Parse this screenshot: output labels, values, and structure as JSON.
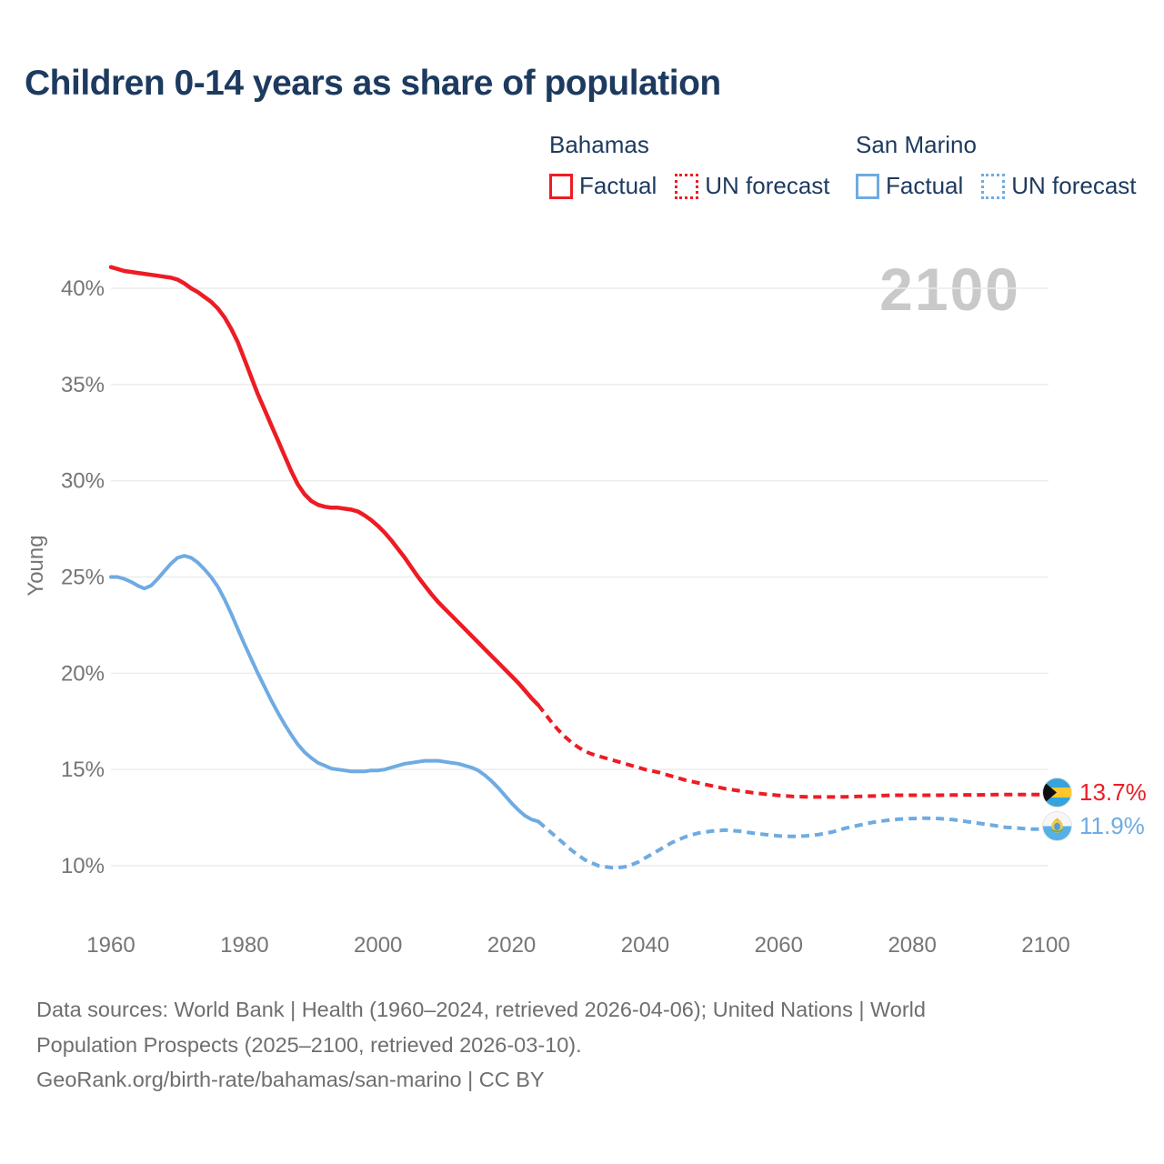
{
  "title": "Children 0-14 years as share of population",
  "watermark": "2100",
  "legend": {
    "groups": [
      {
        "name": "Bahamas",
        "color": "#ed1c24",
        "factual_label": "Factual",
        "forecast_label": "UN forecast"
      },
      {
        "name": "San Marino",
        "color": "#6fabe2",
        "factual_label": "Factual",
        "forecast_label": "UN forecast"
      }
    ]
  },
  "footer": {
    "line1": "Data sources: World Bank | Health (1960–2024, retrieved 2026-04-06); United Nations | World",
    "line2": "Population Prospects (2025–2100, retrieved 2026-03-10).",
    "line3": "GeoRank.org/birth-rate/bahamas/san-marino | CC BY"
  },
  "colors": {
    "bahamas_red": "#ed1c24",
    "san_marino_blue": "#6fabe2",
    "navy_text": "#1d3a5f",
    "tick_gray": "#757575",
    "footer_gray": "#6e6e6e",
    "gridline": "#ececec",
    "watermark_gray": "#c9c9c9"
  },
  "chart_data": {
    "type": "line",
    "title": "Children 0-14 years as share of population",
    "xlabel": "",
    "ylabel": "Young",
    "xlim": [
      1960,
      2100
    ],
    "ylim": [
      8.5,
      43
    ],
    "grid": true,
    "legend_position": "top-right",
    "x_ticks": [
      {
        "v": 1960,
        "label": "1960"
      },
      {
        "v": 1980,
        "label": "1980"
      },
      {
        "v": 2000,
        "label": "2000"
      },
      {
        "v": 2020,
        "label": "2020"
      },
      {
        "v": 2040,
        "label": "2040"
      },
      {
        "v": 2060,
        "label": "2060"
      },
      {
        "v": 2080,
        "label": "2080"
      },
      {
        "v": 2100,
        "label": "2100"
      }
    ],
    "y_ticks": [
      {
        "v": 10,
        "label": "10%"
      },
      {
        "v": 15,
        "label": "15%"
      },
      {
        "v": 20,
        "label": "20%"
      },
      {
        "v": 25,
        "label": "25%"
      },
      {
        "v": 30,
        "label": "30%"
      },
      {
        "v": 35,
        "label": "35%"
      },
      {
        "v": 40,
        "label": "40%"
      }
    ],
    "series": [
      {
        "name": "Bahamas Factual",
        "color": "#ed1c24",
        "style": "solid",
        "width": 4.5,
        "points": [
          [
            1960,
            41.1
          ],
          [
            1961,
            41.0
          ],
          [
            1962,
            40.9
          ],
          [
            1963,
            40.85
          ],
          [
            1964,
            40.8
          ],
          [
            1965,
            40.75
          ],
          [
            1966,
            40.7
          ],
          [
            1967,
            40.65
          ],
          [
            1968,
            40.6
          ],
          [
            1969,
            40.55
          ],
          [
            1970,
            40.45
          ],
          [
            1971,
            40.25
          ],
          [
            1972,
            40.0
          ],
          [
            1973,
            39.8
          ],
          [
            1974,
            39.55
          ],
          [
            1975,
            39.3
          ],
          [
            1976,
            38.95
          ],
          [
            1977,
            38.5
          ],
          [
            1978,
            37.9
          ],
          [
            1979,
            37.2
          ],
          [
            1980,
            36.3
          ],
          [
            1981,
            35.4
          ],
          [
            1982,
            34.5
          ],
          [
            1983,
            33.7
          ],
          [
            1984,
            32.9
          ],
          [
            1985,
            32.1
          ],
          [
            1986,
            31.3
          ],
          [
            1987,
            30.5
          ],
          [
            1988,
            29.8
          ],
          [
            1989,
            29.3
          ],
          [
            1990,
            28.95
          ],
          [
            1991,
            28.75
          ],
          [
            1992,
            28.65
          ],
          [
            1993,
            28.6
          ],
          [
            1994,
            28.6
          ],
          [
            1995,
            28.55
          ],
          [
            1996,
            28.5
          ],
          [
            1997,
            28.4
          ],
          [
            1998,
            28.2
          ],
          [
            1999,
            27.95
          ],
          [
            2000,
            27.65
          ],
          [
            2001,
            27.3
          ],
          [
            2002,
            26.9
          ],
          [
            2003,
            26.45
          ],
          [
            2004,
            26.0
          ],
          [
            2005,
            25.5
          ],
          [
            2006,
            25.0
          ],
          [
            2007,
            24.55
          ],
          [
            2008,
            24.1
          ],
          [
            2009,
            23.7
          ],
          [
            2010,
            23.35
          ],
          [
            2011,
            23.0
          ],
          [
            2012,
            22.65
          ],
          [
            2013,
            22.3
          ],
          [
            2014,
            21.95
          ],
          [
            2015,
            21.6
          ],
          [
            2016,
            21.25
          ],
          [
            2017,
            20.9
          ],
          [
            2018,
            20.55
          ],
          [
            2019,
            20.2
          ],
          [
            2020,
            19.85
          ],
          [
            2021,
            19.5
          ],
          [
            2022,
            19.1
          ],
          [
            2023,
            18.7
          ],
          [
            2024,
            18.35
          ]
        ]
      },
      {
        "name": "Bahamas UN forecast",
        "color": "#ed1c24",
        "style": "dashed",
        "width": 4,
        "points": [
          [
            2024,
            18.35
          ],
          [
            2025,
            17.9
          ],
          [
            2026,
            17.45
          ],
          [
            2027,
            17.05
          ],
          [
            2028,
            16.7
          ],
          [
            2029,
            16.4
          ],
          [
            2030,
            16.15
          ],
          [
            2031,
            15.95
          ],
          [
            2032,
            15.8
          ],
          [
            2033,
            15.7
          ],
          [
            2034,
            15.6
          ],
          [
            2035,
            15.5
          ],
          [
            2036,
            15.4
          ],
          [
            2037,
            15.3
          ],
          [
            2038,
            15.2
          ],
          [
            2039,
            15.1
          ],
          [
            2040,
            15.0
          ],
          [
            2042,
            14.85
          ],
          [
            2044,
            14.65
          ],
          [
            2046,
            14.45
          ],
          [
            2048,
            14.3
          ],
          [
            2050,
            14.15
          ],
          [
            2052,
            14.0
          ],
          [
            2054,
            13.9
          ],
          [
            2056,
            13.8
          ],
          [
            2058,
            13.72
          ],
          [
            2060,
            13.65
          ],
          [
            2062,
            13.6
          ],
          [
            2064,
            13.58
          ],
          [
            2066,
            13.57
          ],
          [
            2068,
            13.57
          ],
          [
            2070,
            13.58
          ],
          [
            2072,
            13.6
          ],
          [
            2074,
            13.62
          ],
          [
            2076,
            13.65
          ],
          [
            2078,
            13.66
          ],
          [
            2080,
            13.66
          ],
          [
            2082,
            13.66
          ],
          [
            2084,
            13.66
          ],
          [
            2086,
            13.67
          ],
          [
            2088,
            13.68
          ],
          [
            2090,
            13.68
          ],
          [
            2092,
            13.69
          ],
          [
            2094,
            13.7
          ],
          [
            2096,
            13.7
          ],
          [
            2098,
            13.7
          ],
          [
            2100,
            13.7
          ]
        ]
      },
      {
        "name": "San Marino Factual",
        "color": "#6fabe2",
        "style": "solid",
        "width": 4,
        "points": [
          [
            1960,
            25.0
          ],
          [
            1961,
            25.0
          ],
          [
            1962,
            24.9
          ],
          [
            1963,
            24.75
          ],
          [
            1964,
            24.55
          ],
          [
            1965,
            24.4
          ],
          [
            1966,
            24.55
          ],
          [
            1967,
            24.9
          ],
          [
            1968,
            25.3
          ],
          [
            1969,
            25.7
          ],
          [
            1970,
            26.0
          ],
          [
            1971,
            26.1
          ],
          [
            1972,
            26.0
          ],
          [
            1973,
            25.75
          ],
          [
            1974,
            25.4
          ],
          [
            1975,
            25.0
          ],
          [
            1976,
            24.5
          ],
          [
            1977,
            23.85
          ],
          [
            1978,
            23.1
          ],
          [
            1979,
            22.3
          ],
          [
            1980,
            21.5
          ],
          [
            1981,
            20.75
          ],
          [
            1982,
            20.0
          ],
          [
            1983,
            19.3
          ],
          [
            1984,
            18.6
          ],
          [
            1985,
            17.95
          ],
          [
            1986,
            17.35
          ],
          [
            1987,
            16.8
          ],
          [
            1988,
            16.3
          ],
          [
            1989,
            15.9
          ],
          [
            1990,
            15.6
          ],
          [
            1991,
            15.35
          ],
          [
            1992,
            15.2
          ],
          [
            1993,
            15.05
          ],
          [
            1994,
            15.0
          ],
          [
            1995,
            14.95
          ],
          [
            1996,
            14.9
          ],
          [
            1997,
            14.9
          ],
          [
            1998,
            14.9
          ],
          [
            1999,
            14.95
          ],
          [
            2000,
            14.95
          ],
          [
            2001,
            15.0
          ],
          [
            2002,
            15.1
          ],
          [
            2003,
            15.2
          ],
          [
            2004,
            15.3
          ],
          [
            2005,
            15.35
          ],
          [
            2006,
            15.4
          ],
          [
            2007,
            15.45
          ],
          [
            2008,
            15.45
          ],
          [
            2009,
            15.45
          ],
          [
            2010,
            15.4
          ],
          [
            2011,
            15.35
          ],
          [
            2012,
            15.3
          ],
          [
            2013,
            15.2
          ],
          [
            2014,
            15.1
          ],
          [
            2015,
            14.95
          ],
          [
            2016,
            14.7
          ],
          [
            2017,
            14.4
          ],
          [
            2018,
            14.05
          ],
          [
            2019,
            13.65
          ],
          [
            2020,
            13.25
          ],
          [
            2021,
            12.9
          ],
          [
            2022,
            12.6
          ],
          [
            2023,
            12.4
          ],
          [
            2024,
            12.3
          ]
        ]
      },
      {
        "name": "San Marino UN forecast",
        "color": "#6fabe2",
        "style": "dashed",
        "width": 4,
        "points": [
          [
            2024,
            12.3
          ],
          [
            2025,
            12.0
          ],
          [
            2026,
            11.7
          ],
          [
            2027,
            11.4
          ],
          [
            2028,
            11.1
          ],
          [
            2029,
            10.8
          ],
          [
            2030,
            10.55
          ],
          [
            2031,
            10.3
          ],
          [
            2032,
            10.15
          ],
          [
            2033,
            10.0
          ],
          [
            2034,
            9.95
          ],
          [
            2035,
            9.9
          ],
          [
            2036,
            9.9
          ],
          [
            2037,
            9.95
          ],
          [
            2038,
            10.05
          ],
          [
            2039,
            10.2
          ],
          [
            2040,
            10.4
          ],
          [
            2041,
            10.6
          ],
          [
            2042,
            10.8
          ],
          [
            2043,
            11.0
          ],
          [
            2044,
            11.2
          ],
          [
            2045,
            11.35
          ],
          [
            2046,
            11.5
          ],
          [
            2047,
            11.6
          ],
          [
            2048,
            11.7
          ],
          [
            2049,
            11.75
          ],
          [
            2050,
            11.8
          ],
          [
            2052,
            11.85
          ],
          [
            2054,
            11.8
          ],
          [
            2056,
            11.7
          ],
          [
            2058,
            11.62
          ],
          [
            2060,
            11.55
          ],
          [
            2062,
            11.52
          ],
          [
            2064,
            11.55
          ],
          [
            2066,
            11.62
          ],
          [
            2068,
            11.75
          ],
          [
            2070,
            11.95
          ],
          [
            2072,
            12.1
          ],
          [
            2074,
            12.25
          ],
          [
            2076,
            12.35
          ],
          [
            2078,
            12.42
          ],
          [
            2080,
            12.45
          ],
          [
            2082,
            12.47
          ],
          [
            2084,
            12.45
          ],
          [
            2086,
            12.4
          ],
          [
            2088,
            12.3
          ],
          [
            2090,
            12.2
          ],
          [
            2092,
            12.1
          ],
          [
            2094,
            12.0
          ],
          [
            2096,
            11.95
          ],
          [
            2098,
            11.9
          ],
          [
            2100,
            11.9
          ]
        ]
      }
    ],
    "end_labels": [
      {
        "text": "13.7%",
        "color": "#ed1c24",
        "flag": "bahamas-flag-icon"
      },
      {
        "text": "11.9%",
        "color": "#6fabe2",
        "flag": "san-marino-flag-icon"
      }
    ]
  }
}
